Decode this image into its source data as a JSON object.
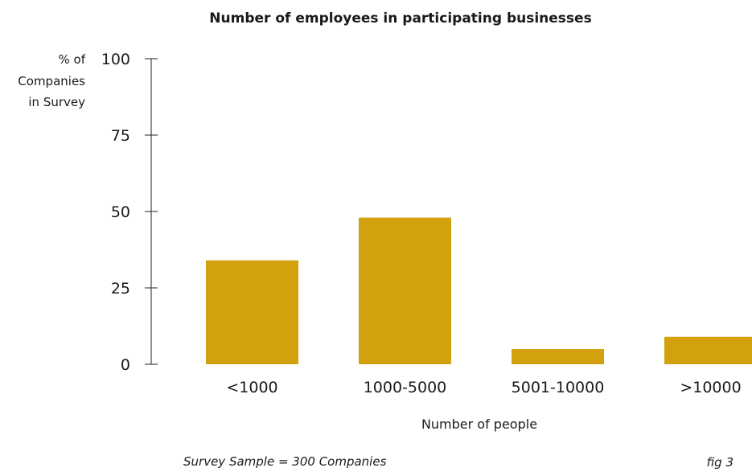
{
  "chart_data": {
    "type": "bar",
    "title": "Number of employees in participating businesses",
    "ylabel_lines": [
      "% of",
      "Companies",
      "in Survey"
    ],
    "xlabel": "Number of people",
    "categories": [
      "<1000",
      "1000-5000",
      "5001-10000",
      ">10000"
    ],
    "values": [
      34,
      48,
      5,
      9
    ],
    "ylim": [
      0,
      100
    ],
    "yticks": [
      0,
      25,
      50,
      75,
      100
    ],
    "grid": false,
    "bar_color": "#d4a10e"
  },
  "footnote": "Survey Sample = 300 Companies",
  "figure_label": "fig 3"
}
